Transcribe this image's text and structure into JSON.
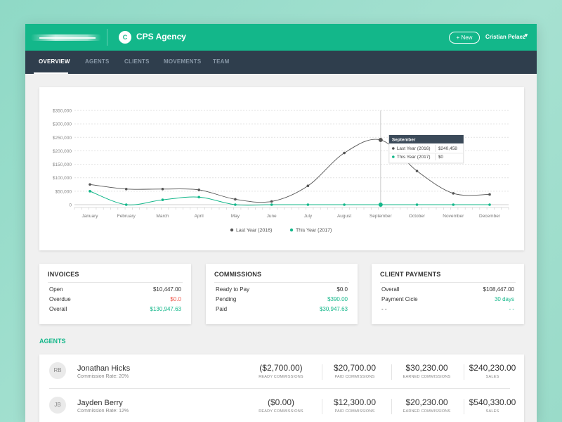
{
  "header": {
    "agency_initial": "C",
    "agency_name": "CPS Agency",
    "new_button": "+ New",
    "user_name": "Cristian Pelaez"
  },
  "nav": {
    "tabs": [
      "OVERVIEW",
      "AGENTS",
      "CLIENTS",
      "MOVEMENTS",
      "TEAM"
    ],
    "active": "OVERVIEW"
  },
  "chart_data": {
    "type": "line",
    "categories": [
      "January",
      "February",
      "March",
      "April",
      "May",
      "June",
      "July",
      "August",
      "September",
      "October",
      "November",
      "December"
    ],
    "y_ticks": [
      "0",
      "$50,000",
      "$100,000",
      "$150,000",
      "$200,000",
      "$250,000",
      "$300,000",
      "$350,000"
    ],
    "ylim": [
      0,
      350000
    ],
    "grid": true,
    "series": [
      {
        "name": "Last Year (2016)",
        "color": "#555555",
        "values": [
          75000,
          58000,
          58000,
          55000,
          20000,
          12000,
          70000,
          192000,
          240458,
          125000,
          42000,
          38000
        ]
      },
      {
        "name": "This Year (2017)",
        "color": "#13b78a",
        "values": [
          50000,
          0,
          18000,
          28000,
          0,
          0,
          0,
          0,
          0,
          0,
          0,
          0
        ]
      }
    ],
    "legend": [
      "Last Year (2016)",
      "This Year (2017)"
    ],
    "tooltip": {
      "title": "September",
      "rows": [
        {
          "label": "Last Year (2016)",
          "value": "$240,458"
        },
        {
          "label": "This Year (2017)",
          "value": "$0"
        }
      ]
    }
  },
  "invoices": {
    "title": "INVOICES",
    "rows": [
      {
        "label": "Open",
        "value": "$10,447.00"
      },
      {
        "label": "Overdue",
        "value": "$0.0"
      },
      {
        "label": "Overall",
        "value": "$130,947.63"
      }
    ]
  },
  "commissions": {
    "title": "COMMISSIONS",
    "rows": [
      {
        "label": "Ready to Pay",
        "value": "$0.0"
      },
      {
        "label": "Pending",
        "value": "$390.00"
      },
      {
        "label": "Paid",
        "value": "$30,947.63"
      }
    ]
  },
  "client_payments": {
    "title": "CLIENT PAYMENTS",
    "rows": [
      {
        "label": "Overall",
        "value": "$108,447.00"
      },
      {
        "label": "Payment Cicle",
        "value": "30 days"
      },
      {
        "label": "- -",
        "value": "- -"
      }
    ]
  },
  "agents": {
    "title": "AGENTS",
    "labels": {
      "ready": "READY COMMISSIONS",
      "paid": "PAID COMMISSIONS",
      "earned": "EARNED COMMISSIONS",
      "sales": "SALES"
    },
    "items": [
      {
        "initials": "RB",
        "name": "Jonathan Hicks",
        "rate": "Commission Rate: 20%",
        "ready": "($2,700.00)",
        "paid": "$20,700.00",
        "earned": "$30,230.00",
        "sales": "$240,230.00"
      },
      {
        "initials": "JB",
        "name": "Jayden Berry",
        "rate": "Commission Rate: 12%",
        "ready": "($0.00)",
        "paid": "$12,300.00",
        "earned": "$20,230.00",
        "sales": "$540,330.00"
      }
    ]
  }
}
